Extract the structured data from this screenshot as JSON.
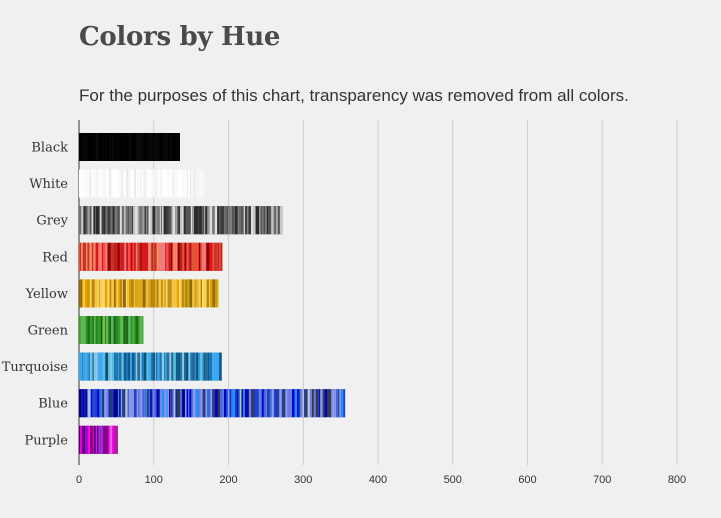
{
  "chart_data": {
    "type": "bar",
    "title": "Colors by Hue",
    "subtitle": "For the purposes of this chart, transparency was removed from all colors.",
    "xlabel": "",
    "ylabel": "",
    "xlim": [
      0,
      800
    ],
    "xticks": [
      0,
      100,
      200,
      300,
      400,
      500,
      600,
      700,
      800
    ],
    "xtick_labels": [
      "0",
      "100",
      "200",
      "300",
      "400",
      "500",
      "600",
      "700",
      "800"
    ],
    "grid": true,
    "categories": [
      "Black",
      "White",
      "Grey",
      "Red",
      "Yellow",
      "Green",
      "Turquoise",
      "Blue",
      "Purple"
    ],
    "values": [
      135,
      167,
      272,
      192,
      187,
      86,
      191,
      356,
      52
    ],
    "bar_palettes": [
      [
        "#000000",
        "#050505",
        "#0a0a0a"
      ],
      [
        "#ffffff",
        "#fafafa",
        "#f5f5f5",
        "#ffffff"
      ],
      [
        "#2b2b2b",
        "#555555",
        "#808080",
        "#a0a0a0",
        "#c8c8c8",
        "#e0e0e0",
        "#3c3c3c",
        "#6e6e6e"
      ],
      [
        "#d7191c",
        "#8b0000",
        "#ff4d4d",
        "#e4572e",
        "#b22222",
        "#ff8c69",
        "#c0392b",
        "#f08080"
      ],
      [
        "#f6c344",
        "#e6a100",
        "#ffd966",
        "#c8a000",
        "#8b6914",
        "#f4d35e",
        "#daa520",
        "#b8860b"
      ],
      [
        "#3a9d23",
        "#1e6b1e",
        "#7ac142",
        "#228b22",
        "#5cb85c",
        "#0b5d1e"
      ],
      [
        "#1f78b4",
        "#3fa9f5",
        "#0b4f7c",
        "#5bc0de",
        "#2a6f97",
        "#8ecae6",
        "#125b8c"
      ],
      [
        "#1f3fd1",
        "#0000cd",
        "#4169e1",
        "#8a9be8",
        "#273c75",
        "#6c7ee1",
        "#000080",
        "#3a3a3a",
        "#b0c4de",
        "#1e90ff"
      ],
      [
        "#8b008b",
        "#c71585",
        "#9932cc",
        "#ff00ff",
        "#4b0082",
        "#da70d6"
      ]
    ]
  }
}
